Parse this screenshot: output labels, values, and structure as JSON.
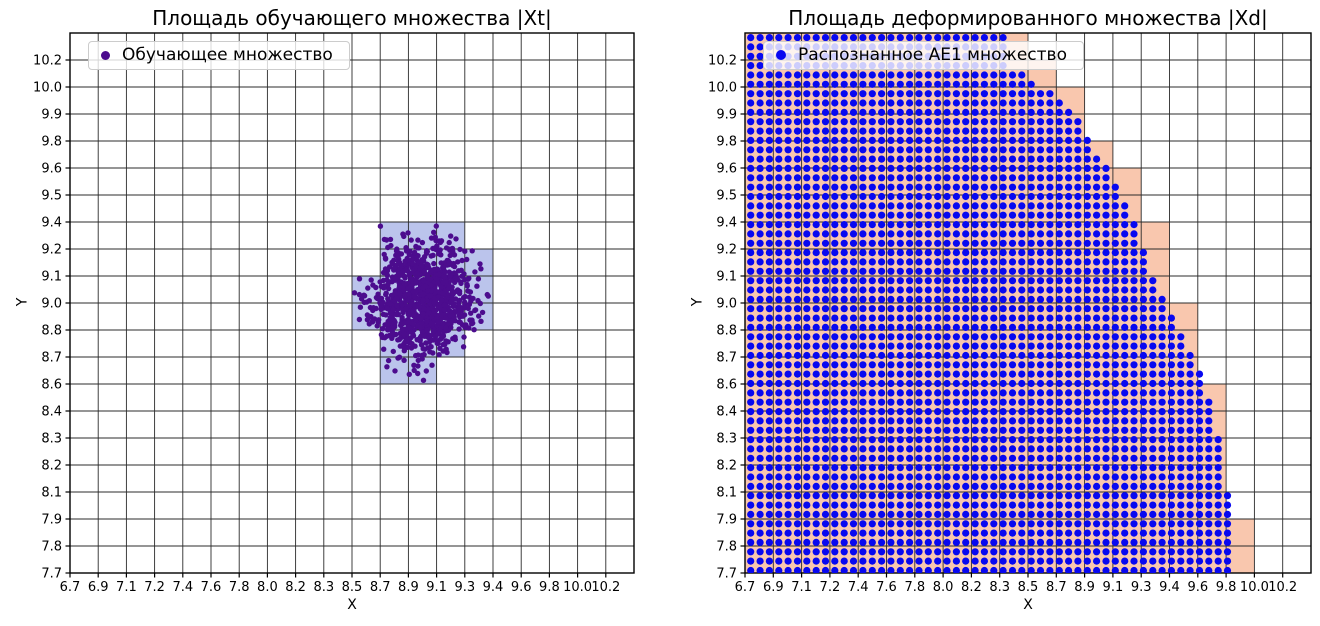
{
  "figure": {
    "background": "#ffffff"
  },
  "colors": {
    "training_marker": "#4c0c8e",
    "training_cell": "#bbc4ec",
    "recognized_marker": "#0808f0",
    "deformed_cell": "#f9c7ae",
    "grid_line": "#2b2b2b",
    "spine": "#000000",
    "legend_border": "#cccccc"
  },
  "chart_data": [
    {
      "type": "scatter",
      "title": "Площадь обучающего множества |Xt|",
      "xlabel": "X",
      "ylabel": "Y",
      "x_tick_labels": [
        "6.7",
        "6.9",
        "7.1",
        "7.2",
        "7.4",
        "7.6",
        "7.8",
        "8.0",
        "8.2",
        "8.3",
        "8.5",
        "8.7",
        "8.9",
        "9.1",
        "9.3",
        "9.4",
        "9.6",
        "9.8",
        "10.0",
        "10.2"
      ],
      "y_tick_labels": [
        "7.7",
        "7.8",
        "7.9",
        "8.1",
        "8.2",
        "8.3",
        "8.4",
        "8.6",
        "8.7",
        "8.8",
        "9.0",
        "9.1",
        "9.2",
        "9.4",
        "9.5",
        "9.6",
        "9.8",
        "9.9",
        "10.0",
        "10.2"
      ],
      "grid": true,
      "legend": {
        "position": "upper left",
        "label": "Обучающее множество"
      },
      "series": [
        {
          "name": "Обучающее множество",
          "kind": "gaussian_cluster",
          "center": [
            9.0,
            9.03
          ],
          "std": [
            0.17,
            0.14
          ],
          "n": 1000,
          "color": "#4c0c8e"
        }
      ],
      "cell_overlay": {
        "color": "#bbc4ec",
        "note": "cells indexed [col,row] between consecutive tick lines, row 0 = bottom",
        "cells": [
          [
            11,
            12
          ],
          [
            12,
            12
          ],
          [
            13,
            12
          ],
          [
            11,
            11
          ],
          [
            12,
            11
          ],
          [
            13,
            11
          ],
          [
            14,
            11
          ],
          [
            10,
            10
          ],
          [
            11,
            10
          ],
          [
            12,
            10
          ],
          [
            13,
            10
          ],
          [
            14,
            10
          ],
          [
            10,
            9
          ],
          [
            11,
            9
          ],
          [
            12,
            9
          ],
          [
            13,
            9
          ],
          [
            14,
            9
          ],
          [
            11,
            8
          ],
          [
            12,
            8
          ],
          [
            13,
            8
          ],
          [
            11,
            7
          ],
          [
            12,
            7
          ]
        ]
      }
    },
    {
      "type": "scatter",
      "title": "Площадь деформированного множества |Xd|",
      "xlabel": "X",
      "ylabel": "Y",
      "x_tick_labels": [
        "6.7",
        "6.9",
        "7.1",
        "7.2",
        "7.4",
        "7.6",
        "7.8",
        "8.0",
        "8.2",
        "8.3",
        "8.5",
        "8.7",
        "8.9",
        "9.1",
        "9.3",
        "9.4",
        "9.6",
        "9.8",
        "10.0",
        "10.2"
      ],
      "y_tick_labels": [
        "7.7",
        "7.8",
        "7.9",
        "8.1",
        "8.2",
        "8.3",
        "8.4",
        "8.6",
        "8.7",
        "8.8",
        "9.0",
        "9.1",
        "9.2",
        "9.4",
        "9.5",
        "9.6",
        "9.8",
        "9.9",
        "10.0",
        "10.2"
      ],
      "grid": true,
      "legend": {
        "position": "upper left",
        "label": "Распознанное AE1 множество"
      },
      "series": [
        {
          "name": "Распознанное AE1 множество",
          "kind": "dot_lattice",
          "color": "#0808f0",
          "boundary_fraction_top_to_bottom": [
            [
              0.0,
              0.459
            ],
            [
              0.06,
              0.47
            ],
            [
              0.124,
              0.565
            ],
            [
              0.226,
              0.624
            ],
            [
              0.278,
              0.659
            ],
            [
              0.38,
              0.698
            ],
            [
              0.432,
              0.716
            ],
            [
              0.482,
              0.733
            ],
            [
              0.532,
              0.758
            ],
            [
              0.582,
              0.786
            ],
            [
              0.632,
              0.804
            ],
            [
              0.68,
              0.822
            ],
            [
              0.73,
              0.832
            ],
            [
              0.782,
              0.843
            ],
            [
              0.832,
              0.85
            ],
            [
              0.884,
              0.857
            ],
            [
              0.934,
              0.862
            ],
            [
              1.0,
              0.864
            ]
          ]
        }
      ],
      "cell_overlay": {
        "color": "#f9c7ae",
        "note": "salmon region fills cols 0..last for each row, row 0 = bottom",
        "last_col_by_row_bottom_up": [
          17,
          17,
          16,
          16,
          16,
          16,
          16,
          15,
          15,
          15,
          14,
          14,
          14,
          13,
          13,
          12,
          11,
          11,
          10,
          9
        ]
      }
    }
  ]
}
